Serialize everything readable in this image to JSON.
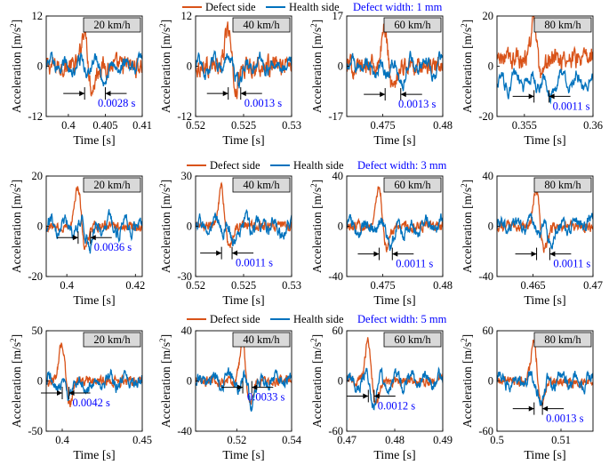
{
  "colors": {
    "defect": "#D95319",
    "health": "#0072BD",
    "note": "#0000FF",
    "speed_box": "#D9D9D9"
  },
  "legend": {
    "defect_label": "Defect side",
    "health_label": "Health side"
  },
  "axis_text": {
    "ylabel": "Acceleration [m/s",
    "ylabel_sup": "2",
    "ylabel_close": "]",
    "xlabel": "Time [s]"
  },
  "chart_data": [
    {
      "type": "line",
      "row": 0,
      "col": 0,
      "title": "20 km/h",
      "defect_width": "Defect width: 1 mm",
      "delay": "0.0028 s",
      "xlim": [
        0.397,
        0.41
      ],
      "ylim": [
        -12,
        12
      ],
      "xticks": [
        0.4,
        0.405,
        0.41
      ],
      "xticklabels": [
        "0.4",
        "0.405",
        "0.41"
      ],
      "yticks": [
        -12,
        0,
        12
      ],
      "yticklabels": [
        "-12",
        "0",
        "12"
      ],
      "defect_peak_t": 0.4022,
      "health_peak_t": 0.405,
      "arrow_y": -6.5
    },
    {
      "type": "line",
      "row": 0,
      "col": 1,
      "title": "40 km/h",
      "defect_width": "",
      "delay": "0.0013 s",
      "xlim": [
        0.52,
        0.53
      ],
      "ylim": [
        -12,
        12
      ],
      "xticks": [
        0.52,
        0.525,
        0.53
      ],
      "xticklabels": [
        "0.52",
        "0.525",
        "0.53"
      ],
      "yticks": [
        -12,
        0,
        12
      ],
      "yticklabels": [
        "-12",
        "0",
        "12"
      ],
      "defect_peak_t": 0.5234,
      "health_peak_t": 0.5247,
      "arrow_y": -6.5
    },
    {
      "type": "line",
      "row": 0,
      "col": 2,
      "title": "60 km/h",
      "defect_width": "",
      "delay": "0.0013 s",
      "xlim": [
        0.472,
        0.48
      ],
      "ylim": [
        -17,
        17
      ],
      "xticks": [
        0.475,
        0.48
      ],
      "xticklabels": [
        "0.475",
        "0.48"
      ],
      "yticks": [
        -17,
        0,
        17
      ],
      "yticklabels": [
        "-17",
        "0",
        "17"
      ],
      "defect_peak_t": 0.4752,
      "health_peak_t": 0.4765,
      "arrow_y": -9.5
    },
    {
      "type": "line",
      "row": 0,
      "col": 3,
      "title": "80 km/h",
      "defect_width": "",
      "delay": "0.0011 s",
      "xlim": [
        0.353,
        0.36
      ],
      "ylim": [
        -20,
        20
      ],
      "xticks": [
        0.355,
        0.36
      ],
      "xticklabels": [
        "0.355",
        "0.36"
      ],
      "yticks": [
        -20,
        0,
        20
      ],
      "yticklabels": [
        "-20",
        "0",
        "20"
      ],
      "defect_peak_t": 0.3557,
      "health_peak_t": 0.3568,
      "arrow_y": -12
    },
    {
      "type": "line",
      "row": 1,
      "col": 0,
      "title": "20 km/h",
      "defect_width": "Defect width: 3 mm",
      "delay": "0.0036 s",
      "xlim": [
        0.394,
        0.422
      ],
      "ylim": [
        -20,
        20
      ],
      "xticks": [
        0.4,
        0.42
      ],
      "xticklabels": [
        "0.4",
        "0.42"
      ],
      "yticks": [
        -20,
        0,
        20
      ],
      "yticklabels": [
        "-20",
        "0",
        "20"
      ],
      "defect_peak_t": 0.4033,
      "health_peak_t": 0.4069,
      "arrow_y": -4.5
    },
    {
      "type": "line",
      "row": 1,
      "col": 1,
      "title": "40 km/h",
      "defect_width": "",
      "delay": "0.0011 s",
      "xlim": [
        0.52,
        0.53
      ],
      "ylim": [
        -30,
        30
      ],
      "xticks": [
        0.52,
        0.525,
        0.53
      ],
      "xticklabels": [
        "0.52",
        "0.525",
        "0.53"
      ],
      "yticks": [
        -30,
        0,
        30
      ],
      "yticklabels": [
        "-30",
        "0",
        "30"
      ],
      "defect_peak_t": 0.5227,
      "health_peak_t": 0.5238,
      "arrow_y": -16
    },
    {
      "type": "line",
      "row": 1,
      "col": 2,
      "title": "60 km/h",
      "defect_width": "",
      "delay": "0.0011 s",
      "xlim": [
        0.472,
        0.48
      ],
      "ylim": [
        -40,
        40
      ],
      "xticks": [
        0.475,
        0.48
      ],
      "xticklabels": [
        "0.475",
        "0.48"
      ],
      "yticks": [
        -40,
        0,
        40
      ],
      "yticklabels": [
        "-40",
        "0",
        "40"
      ],
      "defect_peak_t": 0.4747,
      "health_peak_t": 0.4758,
      "arrow_y": -22
    },
    {
      "type": "line",
      "row": 1,
      "col": 3,
      "title": "80 km/h",
      "defect_width": "",
      "delay": "0.0011 s",
      "xlim": [
        0.462,
        0.47
      ],
      "ylim": [
        -40,
        40
      ],
      "xticks": [
        0.465,
        0.47
      ],
      "xticklabels": [
        "0.465",
        "0.47"
      ],
      "yticks": [
        -40,
        0,
        40
      ],
      "yticklabels": [
        "-40",
        "0",
        "40"
      ],
      "defect_peak_t": 0.4653,
      "health_peak_t": 0.4664,
      "arrow_y": -22
    },
    {
      "type": "line",
      "row": 2,
      "col": 0,
      "title": "20 km/h",
      "defect_width": "Defect width: 5 mm",
      "delay": "0.0042 s",
      "xlim": [
        0.39,
        0.45
      ],
      "ylim": [
        -50,
        50
      ],
      "xticks": [
        0.4,
        0.45
      ],
      "xticklabels": [
        "0.4",
        "0.45"
      ],
      "yticks": [
        -50,
        0,
        50
      ],
      "yticklabels": [
        "-50",
        "0",
        "50"
      ],
      "defect_peak_t": 0.4,
      "health_peak_t": 0.4042,
      "arrow_y": -12
    },
    {
      "type": "line",
      "row": 2,
      "col": 1,
      "title": "40 km/h",
      "defect_width": "",
      "delay": "0.0033 s",
      "xlim": [
        0.505,
        0.54
      ],
      "ylim": [
        -40,
        40
      ],
      "xticks": [
        0.52,
        0.54
      ],
      "xticklabels": [
        "0.52",
        "0.54"
      ],
      "yticks": [
        -40,
        0,
        40
      ],
      "yticklabels": [
        "-40",
        "0",
        "40"
      ],
      "defect_peak_t": 0.5222,
      "health_peak_t": 0.5255,
      "arrow_y": -5
    },
    {
      "type": "line",
      "row": 2,
      "col": 2,
      "title": "60 km/h",
      "defect_width": "",
      "delay": "0.0012 s",
      "xlim": [
        0.47,
        0.49
      ],
      "ylim": [
        -60,
        60
      ],
      "xticks": [
        0.47,
        0.48,
        0.49
      ],
      "xticklabels": [
        "0.47",
        "0.48",
        "0.49"
      ],
      "yticks": [
        -60,
        0,
        60
      ],
      "yticklabels": [
        "-60",
        "0",
        "60"
      ],
      "defect_peak_t": 0.4745,
      "health_peak_t": 0.4757,
      "arrow_y": -18
    },
    {
      "type": "line",
      "row": 2,
      "col": 3,
      "title": "80 km/h",
      "defect_width": "",
      "delay": "0.0013 s",
      "xlim": [
        0.5,
        0.515
      ],
      "ylim": [
        -60,
        60
      ],
      "xticks": [
        0.5,
        0.51
      ],
      "xticklabels": [
        "0.5",
        "0.51"
      ],
      "yticks": [
        -60,
        0,
        60
      ],
      "yticklabels": [
        "-60",
        "0",
        "60"
      ],
      "defect_peak_t": 0.5058,
      "health_peak_t": 0.5071,
      "arrow_y": -33
    }
  ]
}
